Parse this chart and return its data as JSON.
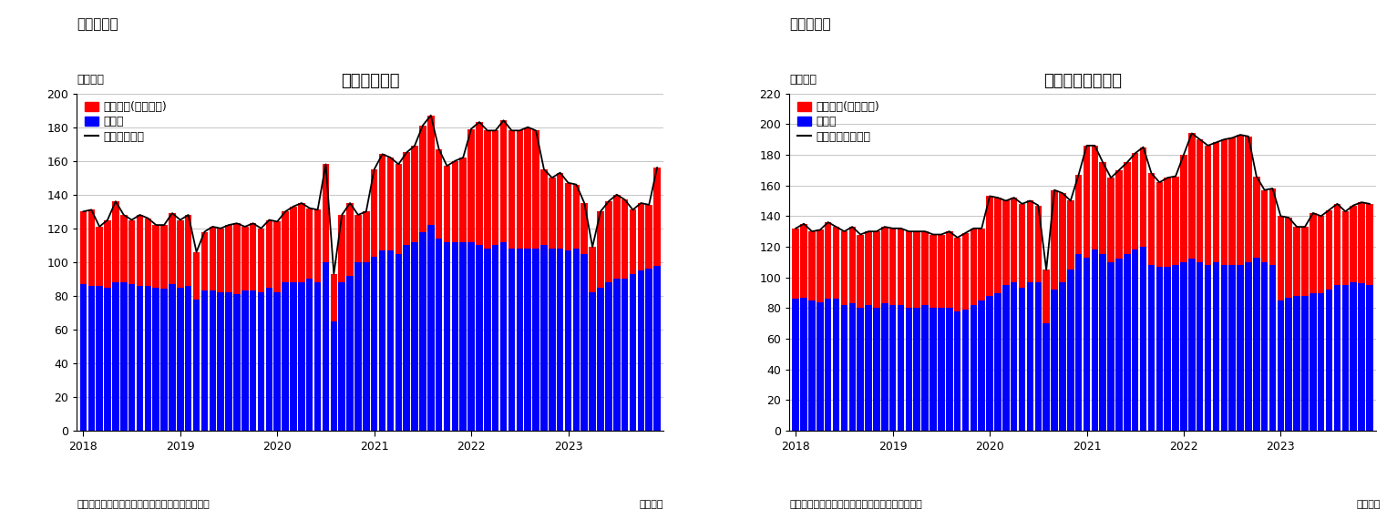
{
  "chart1": {
    "title": "住宅着工件数",
    "suptitle": "（図表１）",
    "ylabel": "（万件）",
    "xlabel_note": "（月次）",
    "source": "（資料）センサス局よりニッセイ基礎研究所作成",
    "ylim": [
      0,
      200
    ],
    "yticks": [
      0,
      20,
      40,
      60,
      80,
      100,
      120,
      140,
      160,
      180,
      200
    ],
    "legend_labels": [
      "集合住宅(二戸以上)",
      "戸建て",
      "住宅着工件数"
    ],
    "detached": [
      87,
      86,
      86,
      85,
      88,
      88,
      87,
      86,
      86,
      85,
      84,
      87,
      85,
      86,
      78,
      83,
      83,
      82,
      82,
      81,
      83,
      83,
      82,
      85,
      82,
      88,
      88,
      88,
      90,
      88,
      100,
      65,
      88,
      92,
      100,
      100,
      103,
      107,
      107,
      105,
      110,
      112,
      118,
      122,
      114,
      112,
      112,
      112,
      112,
      110,
      108,
      110,
      112,
      108,
      108,
      108,
      108,
      110,
      108,
      108,
      107,
      108,
      105,
      82,
      85,
      88,
      90,
      90,
      93,
      95,
      96,
      98
    ],
    "collective": [
      43,
      45,
      35,
      40,
      48,
      40,
      38,
      42,
      40,
      37,
      38,
      42,
      40,
      42,
      28,
      35,
      38,
      38,
      40,
      42,
      38,
      40,
      38,
      40,
      42,
      42,
      45,
      47,
      42,
      43,
      58,
      28,
      40,
      43,
      28,
      30,
      52,
      57,
      55,
      53,
      55,
      57,
      63,
      65,
      53,
      45,
      48,
      50,
      67,
      73,
      70,
      68,
      72,
      70,
      70,
      72,
      70,
      45,
      42,
      45,
      40,
      38,
      30,
      27,
      45,
      48,
      50,
      47,
      38,
      40,
      38,
      58
    ]
  },
  "chart2": {
    "title": "住宅着工許可件数",
    "suptitle": "（図表２）",
    "ylabel": "（万件）",
    "xlabel_note": "（月次）",
    "source": "（資料）センサス局よりニッセイ基礎研究所作成",
    "ylim": [
      0,
      220
    ],
    "yticks": [
      0,
      20,
      40,
      60,
      80,
      100,
      120,
      140,
      160,
      180,
      200,
      220
    ],
    "legend_labels": [
      "集合住宅(二戸以上)",
      "戸建て",
      "住宅建築許可件数"
    ],
    "detached": [
      86,
      87,
      85,
      84,
      86,
      86,
      82,
      83,
      80,
      82,
      80,
      83,
      82,
      82,
      80,
      80,
      82,
      80,
      80,
      80,
      78,
      79,
      82,
      85,
      88,
      90,
      95,
      97,
      93,
      97,
      97,
      70,
      92,
      97,
      105,
      115,
      113,
      118,
      115,
      110,
      112,
      115,
      118,
      120,
      108,
      107,
      107,
      108,
      110,
      112,
      110,
      108,
      110,
      108,
      108,
      108,
      110,
      113,
      110,
      108,
      85,
      87,
      88,
      88,
      90,
      90,
      92,
      95,
      95,
      97,
      96,
      95
    ],
    "collective": [
      46,
      48,
      45,
      47,
      50,
      47,
      48,
      50,
      48,
      48,
      50,
      50,
      50,
      50,
      50,
      50,
      48,
      48,
      48,
      50,
      48,
      50,
      50,
      47,
      65,
      62,
      55,
      55,
      55,
      53,
      50,
      35,
      65,
      58,
      45,
      52,
      73,
      68,
      60,
      55,
      58,
      60,
      63,
      65,
      60,
      55,
      58,
      58,
      70,
      82,
      80,
      78,
      78,
      82,
      83,
      85,
      82,
      53,
      47,
      50,
      55,
      52,
      45,
      45,
      52,
      50,
      52,
      53,
      48,
      50,
      53,
      53
    ]
  },
  "bar_color_collective": "#FF0000",
  "bar_color_detached": "#0000FF",
  "line_color": "#000000",
  "background_color": "#FFFFFF",
  "title_fontsize": 13,
  "label_fontsize": 9,
  "tick_fontsize": 9,
  "legend_fontsize": 9,
  "suptitle_fontsize": 11,
  "source_fontsize": 8,
  "year_labels": [
    "2018",
    "2019",
    "2020",
    "2021",
    "2022",
    "2023"
  ],
  "year_positions": [
    0,
    12,
    24,
    36,
    48,
    60
  ]
}
